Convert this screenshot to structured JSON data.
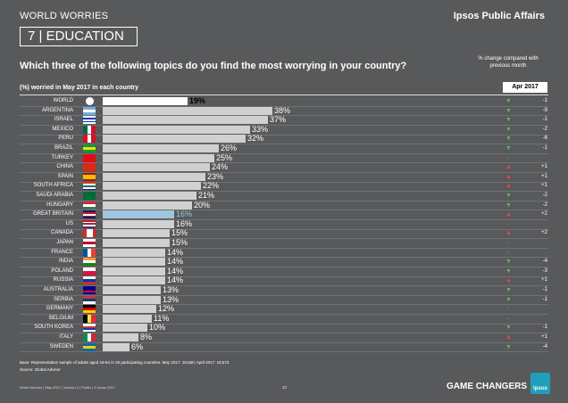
{
  "header": {
    "left_title": "WORLD WORRIES",
    "brand": "Ipsos Public Affairs",
    "section": "7  |  EDUCATION"
  },
  "question": "Which three of the following topics do you find the most worrying in your country?",
  "change_note": "% change compared with previous month",
  "subtitle": "(%) worried in May 2017 in each country",
  "period_label": "Apr 2017",
  "chart_data": {
    "type": "bar",
    "orientation": "horizontal",
    "title": "Which three of the following topics do you find the most worrying in your country?",
    "xlabel": "(%) worried in May 2017 in each country",
    "xlim": [
      0,
      100
    ],
    "categories": [
      "WORLD",
      "ARGENTINA",
      "ISRAEL",
      "MEXICO",
      "PERU",
      "BRAZIL",
      "TURKEY",
      "CHINA",
      "SPAIN",
      "SOUTH AFRICA",
      "SAUDI ARABIA",
      "HUNGARY",
      "GREAT BRITAIN",
      "US",
      "CANADA",
      "JAPAN",
      "FRANCE",
      "INDIA",
      "POLAND",
      "RUSSIA",
      "AUSTRALIA",
      "SERBIA",
      "GERMANY",
      "BELGIUM",
      "SOUTH KOREA",
      "ITALY",
      "SWEDEN"
    ],
    "values": [
      19,
      38,
      37,
      33,
      32,
      26,
      25,
      24,
      23,
      22,
      21,
      20,
      16,
      16,
      15,
      15,
      14,
      14,
      14,
      14,
      13,
      13,
      12,
      11,
      10,
      8,
      6
    ],
    "value_labels": [
      "19%",
      "38%",
      "37%",
      "33%",
      "32%",
      "26%",
      "25%",
      "24%",
      "23%",
      "22%",
      "21%",
      "20%",
      "16%",
      "16%",
      "15%",
      "15%",
      "14%",
      "14%",
      "14%",
      "14%",
      "13%",
      "13%",
      "12%",
      "11%",
      "10%",
      "8%",
      "6%"
    ],
    "change_vs_apr_2017": [
      "-1",
      "-9",
      "-1",
      "-2",
      "-6",
      "-1",
      "",
      "+1",
      "+1",
      "+1",
      "-2",
      "-2",
      "+2",
      "",
      "+2",
      "",
      "",
      "-4",
      "-3",
      "+1",
      "-1",
      "-1",
      "",
      "",
      "-1",
      "+1",
      "-4"
    ],
    "change_direction": [
      "down",
      "down",
      "down",
      "down",
      "down",
      "down",
      "none",
      "up",
      "up",
      "up",
      "down",
      "down",
      "up",
      "none",
      "up",
      "none",
      "none",
      "down",
      "down",
      "up",
      "down",
      "down",
      "none",
      "none",
      "down",
      "up",
      "down"
    ],
    "highlight_colors": {
      "world": "#ffffff",
      "great_britain": "#9fc6de",
      "default": "#d0d0d0"
    }
  },
  "flags": [
    "globe",
    "argentina",
    "israel",
    "mexico",
    "peru",
    "brazil",
    "turkey",
    "china",
    "spain",
    "south-africa",
    "saudi-arabia",
    "hungary",
    "great-britain",
    "us",
    "canada",
    "japan",
    "france",
    "india",
    "poland",
    "russia",
    "australia",
    "serbia",
    "germany",
    "belgium",
    "south-korea",
    "italy",
    "sweden"
  ],
  "footer": {
    "base": "Base: Representative sample of adults aged 16-64 in 26 participating countries. May 2017: 18,550; April 2017: 18,573",
    "source": "Source: Global Advisor",
    "info": "World Worries  |  May 2017  |  Version 2  |  Public  |  © Ipsos 2017",
    "page": "20",
    "tagline": "GAME CHANGERS",
    "logo": "Ipsos"
  }
}
